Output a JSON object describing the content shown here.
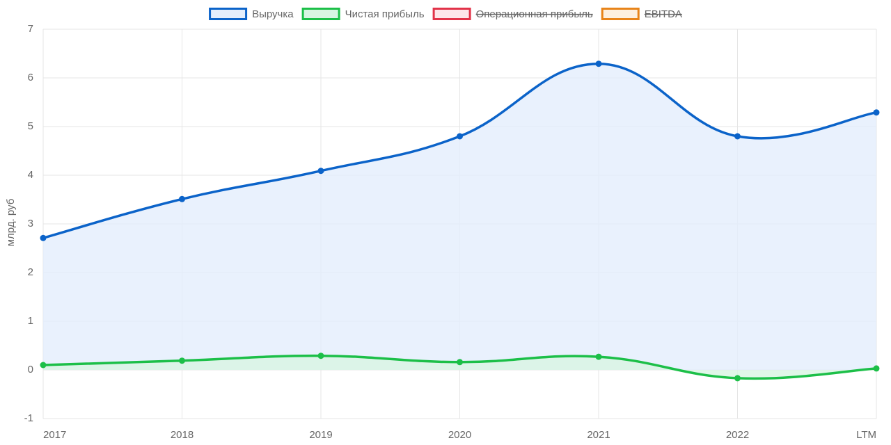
{
  "chart_data": {
    "type": "line",
    "y_label": "млрд. руб",
    "categories": [
      "2017",
      "2018",
      "2019",
      "2020",
      "2021",
      "2022",
      "LTM"
    ],
    "series": [
      {
        "name": "Выручка",
        "color": "#0b63c9",
        "fill": "#e3eefc",
        "values": [
          2.71,
          3.51,
          4.09,
          4.8,
          6.29,
          4.8,
          5.29
        ]
      },
      {
        "name": "Чистая прибыль",
        "color": "#1cbf48",
        "fill": "#d8f5e2",
        "values": [
          0.1,
          0.19,
          0.29,
          0.16,
          0.27,
          -0.17,
          0.03
        ]
      },
      {
        "name": "Операционная прибыль",
        "color": "#e23349",
        "fill": "#fde6ea",
        "hidden": true
      },
      {
        "name": "EBITDA",
        "color": "#e8841a",
        "fill": "#fdf0e0",
        "hidden": true
      }
    ],
    "ylim": [
      -1,
      7
    ],
    "yticks": [
      -1,
      0,
      1,
      2,
      3,
      4,
      5,
      6,
      7
    ],
    "grid": true,
    "legend": "top"
  }
}
